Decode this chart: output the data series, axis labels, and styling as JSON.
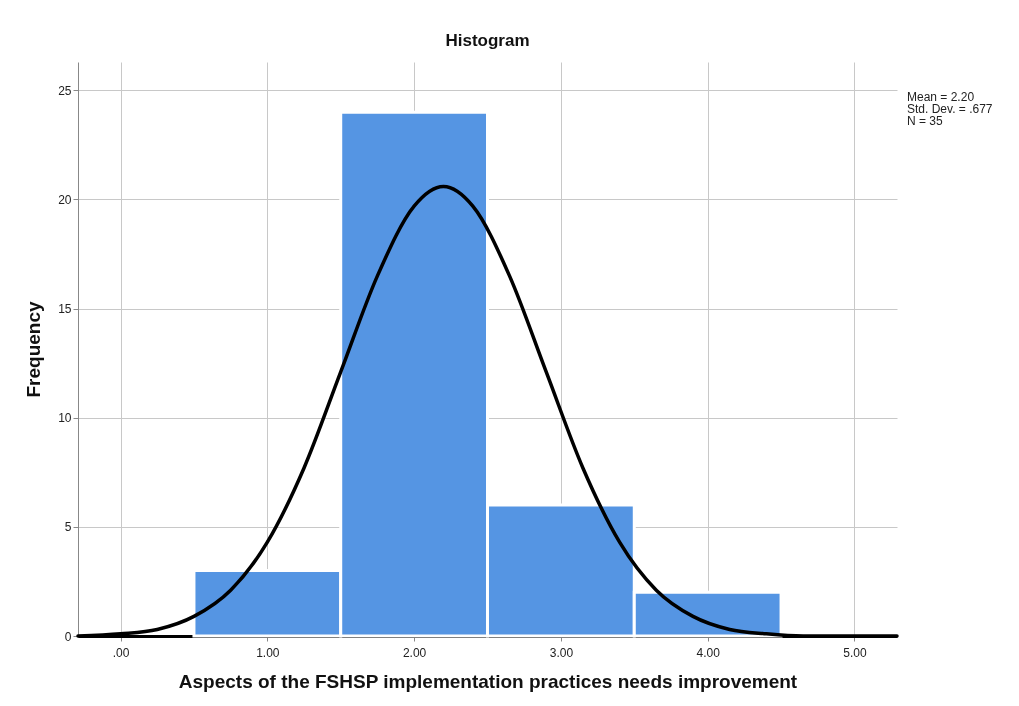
{
  "chart_data": {
    "type": "histogram",
    "title": "Histogram",
    "xlabel": "Aspects of the FSHSP implementation practices needs improvement",
    "ylabel": "Frequency",
    "bins": [
      0.5,
      1.5,
      2.5,
      3.5,
      4.5
    ],
    "values": [
      3,
      24,
      6,
      2
    ],
    "color": "#5595e3",
    "series": [
      {
        "type": "line",
        "color": "#000000",
        "x": [
          -0.29,
          0,
          0.25,
          0.5,
          0.75,
          1,
          1.25,
          1.5,
          1.75,
          2,
          2.2,
          2.4,
          2.65,
          2.9,
          3.15,
          3.4,
          3.65,
          3.9,
          4.15,
          4.4,
          4.65,
          5.29
        ],
        "values": [
          0.0,
          0.1,
          0.3,
          0.9,
          2.1,
          4.3,
          7.7,
          12.1,
          16.5,
          19.7,
          20.6,
          19.7,
          16.5,
          12.1,
          7.7,
          4.3,
          2.1,
          0.9,
          0.3,
          0.1,
          0.0,
          0.0
        ]
      }
    ],
    "xlim": [
      -0.29,
      5.29
    ],
    "xticks": [
      {
        "value": 0,
        "label": ".00"
      },
      {
        "value": 1,
        "label": "1.00"
      },
      {
        "value": 2,
        "label": "2.00"
      },
      {
        "value": 3,
        "label": "3.00"
      },
      {
        "value": 4,
        "label": "4.00"
      },
      {
        "value": 5,
        "label": "5.00"
      }
    ],
    "ylim": [
      0,
      26.3
    ],
    "yticks": [
      0,
      5,
      10,
      15,
      20,
      25
    ],
    "grid": true,
    "line_style": "solid",
    "marker": "none",
    "annotations": [
      "Mean = 2.20",
      "Std. Dev. = .677",
      "N = 35"
    ]
  }
}
